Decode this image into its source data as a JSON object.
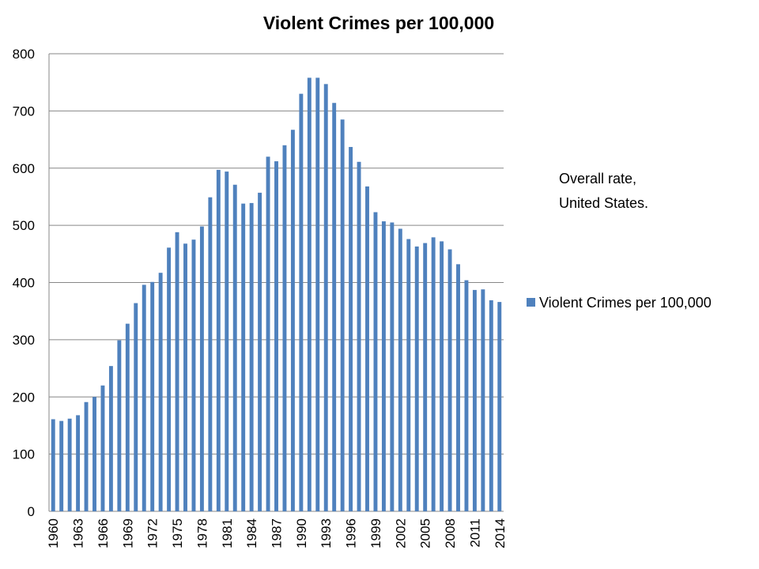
{
  "chart_data": {
    "type": "bar",
    "title": "Violent Crimes per 100,000",
    "xlabel": "",
    "ylabel": "",
    "ylim": [
      0,
      800
    ],
    "yticks": [
      0,
      100,
      200,
      300,
      400,
      500,
      600,
      700,
      800
    ],
    "grid": true,
    "legend_position": "right",
    "annotation": [
      "Overall rate,",
      "United States."
    ],
    "bar_color": "#4F81BD",
    "categories": [
      "1960",
      "1961",
      "1962",
      "1963",
      "1964",
      "1965",
      "1966",
      "1967",
      "1968",
      "1969",
      "1970",
      "1971",
      "1972",
      "1973",
      "1974",
      "1975",
      "1976",
      "1977",
      "1978",
      "1979",
      "1980",
      "1981",
      "1982",
      "1983",
      "1984",
      "1985",
      "1986",
      "1987",
      "1988",
      "1989",
      "1990",
      "1991",
      "1992",
      "1993",
      "1994",
      "1995",
      "1996",
      "1997",
      "1998",
      "1999",
      "2000",
      "2001",
      "2002",
      "2003",
      "2004",
      "2005",
      "2006",
      "2007",
      "2008",
      "2009",
      "2010",
      "2011",
      "2012",
      "2013",
      "2014"
    ],
    "x_tick_labels": [
      "1960",
      "1963",
      "1966",
      "1969",
      "1972",
      "1975",
      "1978",
      "1981",
      "1984",
      "1987",
      "1990",
      "1993",
      "1996",
      "1999",
      "2002",
      "2005",
      "2008",
      "2011",
      "2014"
    ],
    "series": [
      {
        "name": "Violent Crimes per 100,000",
        "values": [
          161,
          158,
          162,
          168,
          191,
          200,
          220,
          254,
          299,
          328,
          364,
          396,
          401,
          417,
          461,
          488,
          468,
          475,
          498,
          549,
          597,
          594,
          571,
          538,
          539,
          557,
          620,
          612,
          640,
          667,
          730,
          758,
          758,
          747,
          714,
          685,
          637,
          611,
          568,
          523,
          507,
          505,
          494,
          476,
          463,
          469,
          479,
          472,
          458,
          432,
          404,
          387,
          388,
          369,
          366
        ]
      }
    ]
  }
}
